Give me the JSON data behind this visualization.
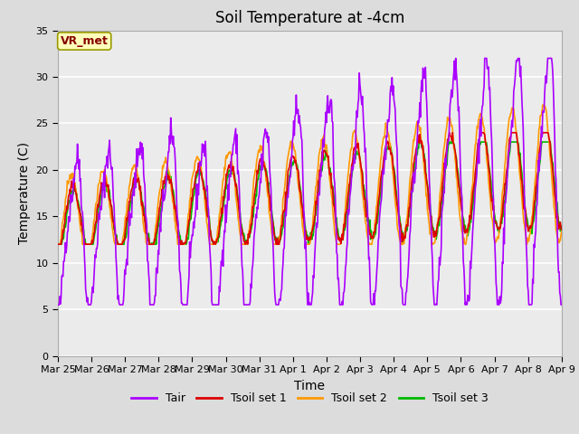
{
  "title": "Soil Temperature at -4cm",
  "xlabel": "Time",
  "ylabel": "Temperature (C)",
  "ylim": [
    0,
    35
  ],
  "yticks": [
    0,
    5,
    10,
    15,
    20,
    25,
    30,
    35
  ],
  "date_labels": [
    "Mar 25",
    "Mar 26",
    "Mar 27",
    "Mar 28",
    "Mar 29",
    "Mar 30",
    "Mar 31",
    "Apr 1",
    "Apr 2",
    "Apr 3",
    "Apr 4",
    "Apr 5",
    "Apr 6",
    "Apr 7",
    "Apr 8",
    "Apr 9"
  ],
  "annotation_text": "VR_met",
  "annotation_bg": "#FFFFBB",
  "annotation_border": "#999900",
  "annotation_text_color": "#880000",
  "tair_color": "#AA00FF",
  "tsoil1_color": "#DD0000",
  "tsoil2_color": "#FF9900",
  "tsoil3_color": "#00BB00",
  "legend_labels": [
    "Tair",
    "Tsoil set 1",
    "Tsoil set 2",
    "Tsoil set 3"
  ],
  "background_color": "#DCDCDC",
  "plot_bg": "#EBEBEB",
  "grid_color": "#FFFFFF",
  "title_fontsize": 12,
  "axis_fontsize": 10,
  "tick_fontsize": 8,
  "legend_fontsize": 9,
  "line_width": 1.2,
  "n_points": 800
}
